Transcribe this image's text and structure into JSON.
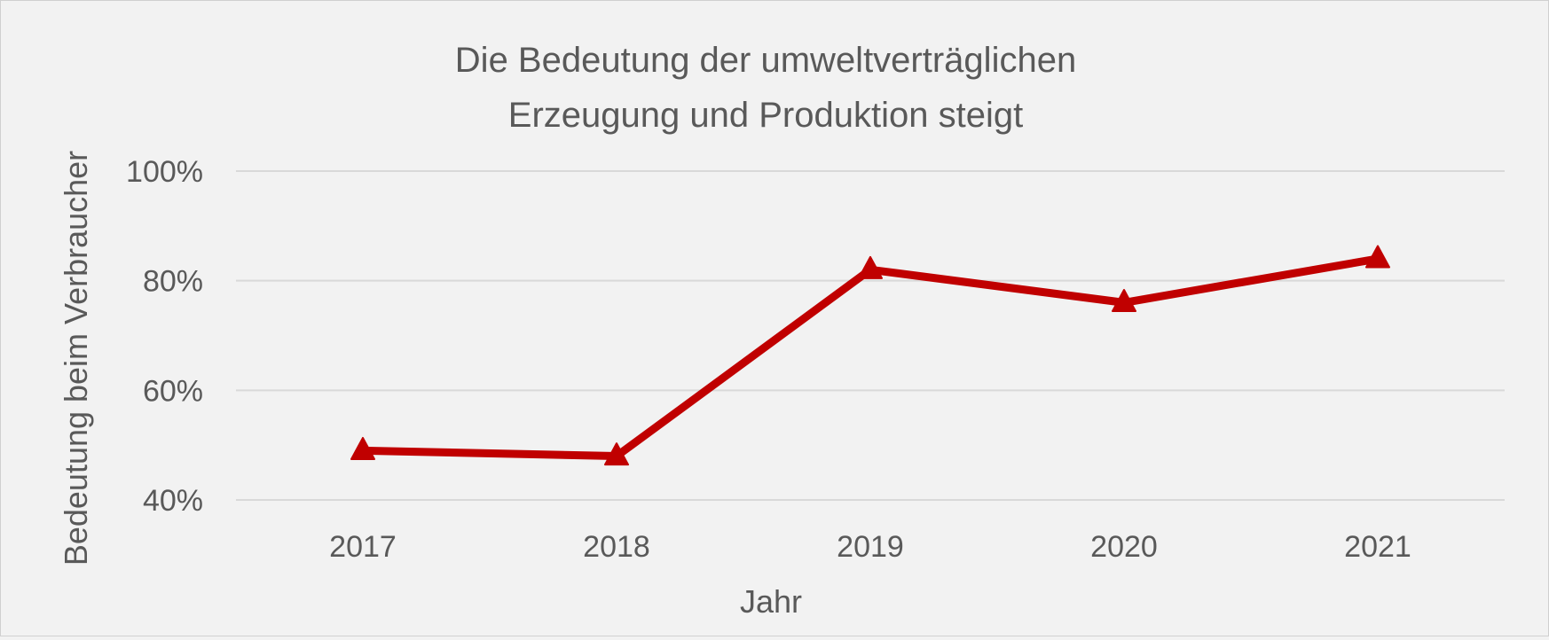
{
  "colors": {
    "background": "#f2f2f2",
    "series_line": "#c00000",
    "gridline": "#d9d9d9",
    "text": "#595959"
  },
  "chart_data": {
    "type": "line",
    "title_lines": [
      "Die Bedeutung der umweltverträglichen",
      "Erzeugung und Produktion steigt"
    ],
    "xlabel": "Jahr",
    "ylabel": "Bedeutung  beim Verbraucher",
    "categories": [
      "2017",
      "2018",
      "2019",
      "2020",
      "2021"
    ],
    "series": [
      {
        "values": [
          0.49,
          0.48,
          0.82,
          0.76,
          0.84
        ],
        "color": "#c00000",
        "marker": "triangle"
      }
    ],
    "ylim": [
      0.4,
      1.0
    ],
    "y_ticks": [
      0.4,
      0.6,
      0.8,
      1.0
    ],
    "y_tick_labels": [
      "40%",
      "60%",
      "80%",
      "100%"
    ],
    "y_format": "percent",
    "grid": true,
    "legend": "none"
  }
}
